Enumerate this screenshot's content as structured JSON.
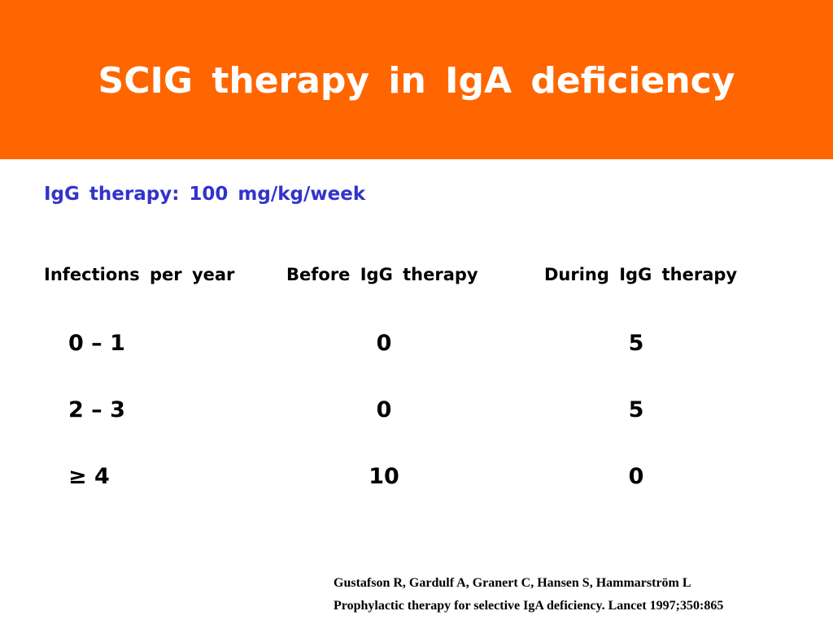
{
  "slide": {
    "title": "SCIG therapy in IgA deficiency",
    "subtitle": "IgG therapy: 100 mg/kg/week"
  },
  "table": {
    "headers": [
      "Infections per year",
      "Before IgG therapy",
      "During IgG therapy"
    ],
    "rows": [
      {
        "range": "0 – 1",
        "before": "0",
        "during": "5"
      },
      {
        "range": "2 – 3",
        "before": "0",
        "during": "5"
      },
      {
        "range": "≥ 4",
        "before": "10",
        "during": "0"
      }
    ]
  },
  "reference": {
    "authors": "Gustafson R, Gardulf A, Granert C, Hansen S, Hammarström L",
    "citation": "Prophylactic therapy for selective IgA deficiency. Lancet 1997;350:865"
  },
  "colors": {
    "header_background": "#ff6600",
    "title_text": "#ffffff",
    "subtitle_text": "#3333cc",
    "body_text": "#000000"
  }
}
